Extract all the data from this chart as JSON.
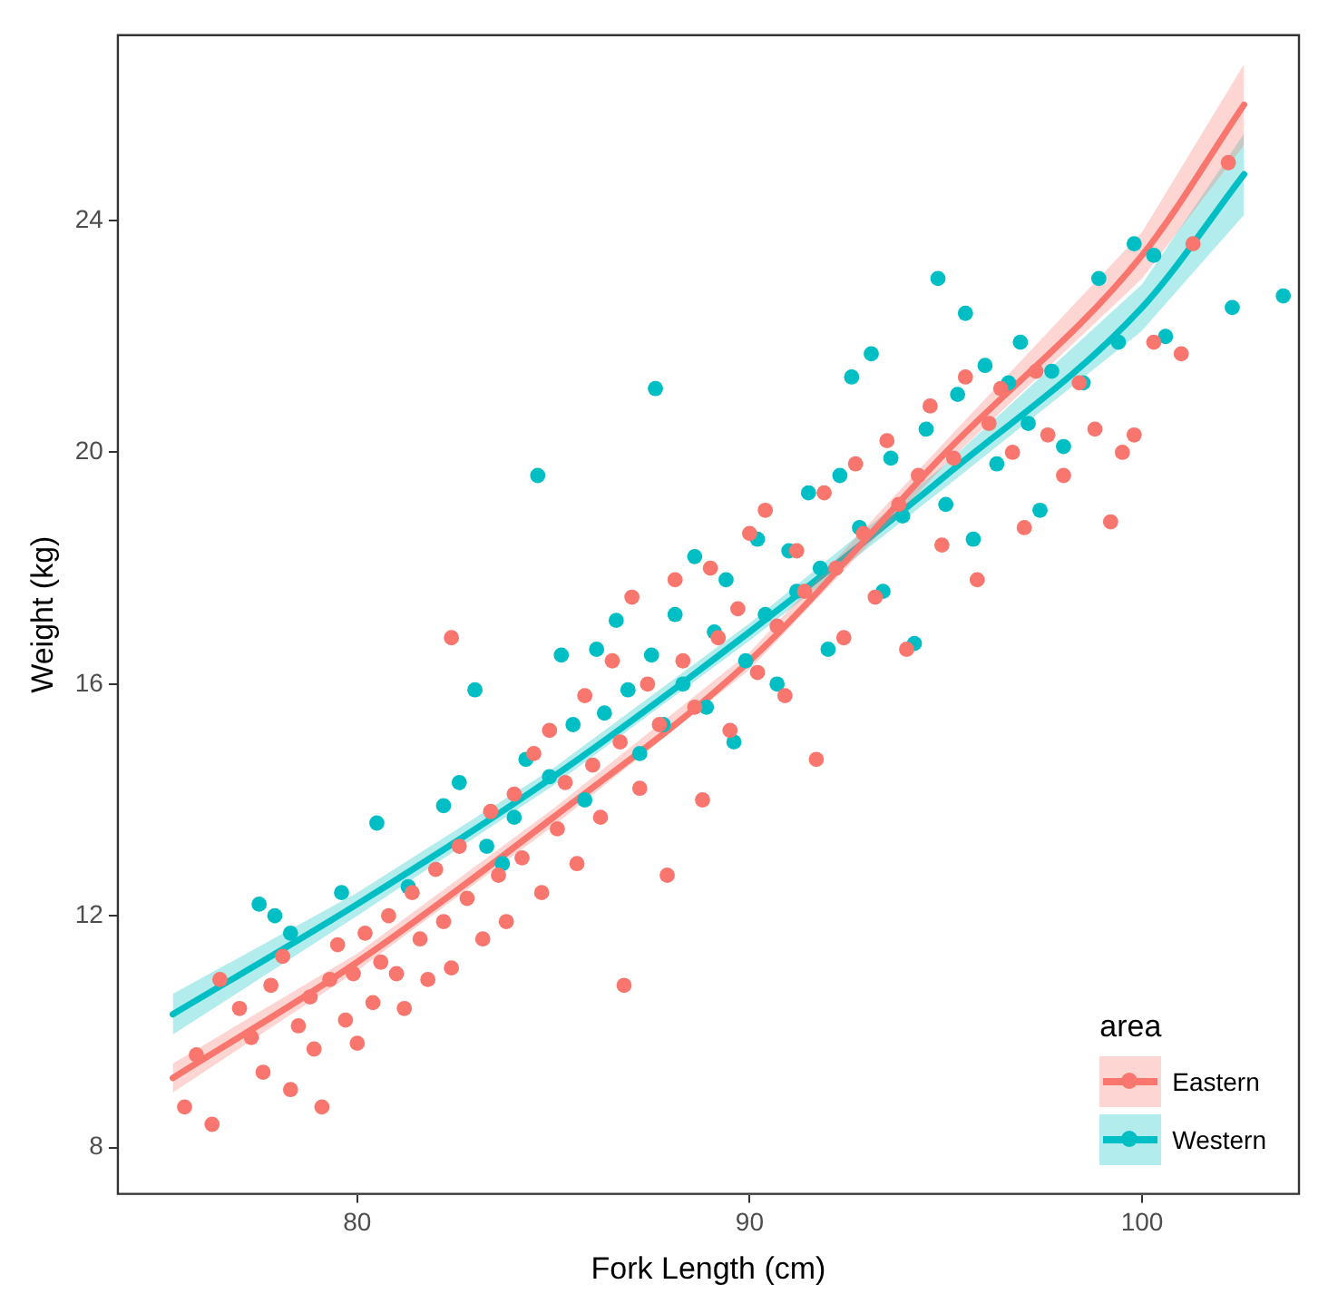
{
  "chart_data": {
    "type": "scatter",
    "xlabel": "Fork Length (cm)",
    "ylabel": "Weight (kg)",
    "legend_title": "area",
    "legend": "bottom right",
    "grid": false,
    "line_style": "solid",
    "xlim": [
      73.9,
      104
    ],
    "xticks": [
      80,
      90,
      100
    ],
    "ylim": [
      7.2,
      27.2
    ],
    "yticks": [
      8,
      12,
      16,
      20,
      24
    ],
    "series": [
      {
        "name": "Eastern",
        "marker": "circle",
        "color": "#f8766d",
        "x": [
          75.6,
          76.3,
          75.9,
          76.5,
          77.0,
          77.3,
          77.6,
          77.8,
          78.1,
          78.3,
          78.5,
          78.8,
          78.9,
          79.1,
          79.3,
          79.5,
          79.7,
          79.9,
          80.0,
          80.2,
          80.4,
          80.6,
          80.8,
          81.0,
          81.2,
          81.4,
          81.6,
          81.8,
          82.0,
          82.2,
          82.4,
          82.6,
          82.8,
          82.4,
          83.2,
          83.4,
          83.6,
          83.8,
          84.0,
          84.2,
          84.5,
          84.7,
          84.9,
          85.1,
          85.3,
          85.6,
          85.8,
          86.0,
          86.2,
          86.5,
          86.7,
          86.8,
          87.0,
          87.2,
          87.4,
          87.7,
          87.9,
          88.1,
          88.3,
          88.6,
          88.8,
          89.0,
          89.2,
          89.5,
          89.7,
          90.0,
          90.2,
          90.4,
          90.7,
          90.9,
          91.2,
          91.4,
          91.7,
          91.9,
          92.2,
          92.4,
          92.7,
          92.9,
          93.2,
          93.5,
          93.8,
          94.0,
          94.3,
          94.6,
          94.9,
          95.2,
          95.5,
          95.8,
          96.1,
          96.4,
          96.7,
          97.0,
          97.3,
          97.6,
          98.0,
          98.4,
          98.8,
          99.2,
          99.5,
          99.8,
          100.3,
          101.0,
          101.3,
          102.2
        ],
        "values": [
          8.7,
          8.4,
          9.6,
          10.9,
          10.4,
          9.9,
          9.3,
          10.8,
          11.3,
          9.0,
          10.1,
          10.6,
          9.7,
          8.7,
          10.9,
          11.5,
          10.2,
          11.0,
          9.8,
          11.7,
          10.5,
          11.2,
          12.0,
          11.0,
          10.4,
          12.4,
          11.6,
          10.9,
          12.8,
          11.9,
          11.1,
          13.2,
          12.3,
          16.8,
          11.6,
          13.8,
          12.7,
          11.9,
          14.1,
          13.0,
          14.8,
          12.4,
          15.2,
          13.5,
          14.3,
          12.9,
          15.8,
          14.6,
          13.7,
          16.4,
          15.0,
          10.8,
          17.5,
          14.2,
          16.0,
          15.3,
          12.7,
          17.8,
          16.4,
          15.6,
          14.0,
          18.0,
          16.8,
          15.2,
          17.3,
          18.6,
          16.2,
          19.0,
          17.0,
          15.8,
          18.3,
          17.6,
          14.7,
          19.3,
          18.0,
          16.8,
          19.8,
          18.6,
          17.5,
          20.2,
          19.1,
          16.6,
          19.6,
          20.8,
          18.4,
          19.9,
          21.3,
          17.8,
          20.5,
          21.1,
          20.0,
          18.7,
          21.4,
          20.3,
          19.6,
          21.2,
          20.4,
          18.8,
          20.0,
          20.3,
          21.9,
          21.7,
          23.6,
          25.0
        ]
      },
      {
        "name": "Western",
        "marker": "circle",
        "color": "#00bfc4",
        "x": [
          77.5,
          77.9,
          78.3,
          79.6,
          80.5,
          81.3,
          82.2,
          82.6,
          83.0,
          83.3,
          83.7,
          84.0,
          84.3,
          84.6,
          84.9,
          85.2,
          85.5,
          85.8,
          86.1,
          86.3,
          86.6,
          86.9,
          87.2,
          87.5,
          87.6,
          87.8,
          88.1,
          88.3,
          88.6,
          88.9,
          89.1,
          89.4,
          89.6,
          89.9,
          90.2,
          90.4,
          90.7,
          91.0,
          91.2,
          91.5,
          91.8,
          92.0,
          92.3,
          92.6,
          92.8,
          93.1,
          93.4,
          93.6,
          93.9,
          94.2,
          94.5,
          94.8,
          95.0,
          95.3,
          95.5,
          95.7,
          96.0,
          96.3,
          96.6,
          96.9,
          97.1,
          97.4,
          97.7,
          98.0,
          98.5,
          98.9,
          99.4,
          99.8,
          100.3,
          100.6,
          102.3,
          103.6
        ],
        "values": [
          12.2,
          12.0,
          11.7,
          12.4,
          13.6,
          12.5,
          13.9,
          14.3,
          15.9,
          13.2,
          12.9,
          13.7,
          14.7,
          19.6,
          14.4,
          16.5,
          15.3,
          14.0,
          16.6,
          15.5,
          17.1,
          15.9,
          14.8,
          16.5,
          21.1,
          15.3,
          17.2,
          16.0,
          18.2,
          15.6,
          16.9,
          17.8,
          15.0,
          16.4,
          18.5,
          17.2,
          16.0,
          18.3,
          17.6,
          19.3,
          18.0,
          16.6,
          19.6,
          21.3,
          18.7,
          21.7,
          17.6,
          19.9,
          18.9,
          16.7,
          20.4,
          23.0,
          19.1,
          21.0,
          22.4,
          18.5,
          21.5,
          19.8,
          21.2,
          21.9,
          20.5,
          19.0,
          21.4,
          20.1,
          21.2,
          23.0,
          21.9,
          23.6,
          23.4,
          22.0,
          22.5,
          22.7
        ]
      },
      {
        "type": "line",
        "marker": "none",
        "color": "#f8766d",
        "x": [
          75.3,
          80,
          85,
          90,
          95,
          100,
          102.6
        ],
        "values": [
          9.2,
          11.2,
          13.7,
          16.4,
          20.0,
          23.4,
          26.0
        ],
        "lower": [
          8.95,
          11.05,
          13.55,
          16.25,
          19.8,
          23.0,
          25.3
        ],
        "upper": [
          9.45,
          11.35,
          13.85,
          16.55,
          20.2,
          23.8,
          26.7
        ]
      },
      {
        "type": "line",
        "marker": "none",
        "color": "#00bfc4",
        "x": [
          75.3,
          80,
          85,
          90,
          95,
          100,
          102.6
        ],
        "values": [
          10.3,
          12.2,
          14.4,
          16.9,
          19.6,
          22.5,
          24.8
        ],
        "lower": [
          9.95,
          12.0,
          14.25,
          16.75,
          19.4,
          22.1,
          24.1
        ],
        "upper": [
          10.65,
          12.4,
          14.55,
          17.05,
          19.8,
          22.9,
          25.5
        ]
      }
    ]
  }
}
